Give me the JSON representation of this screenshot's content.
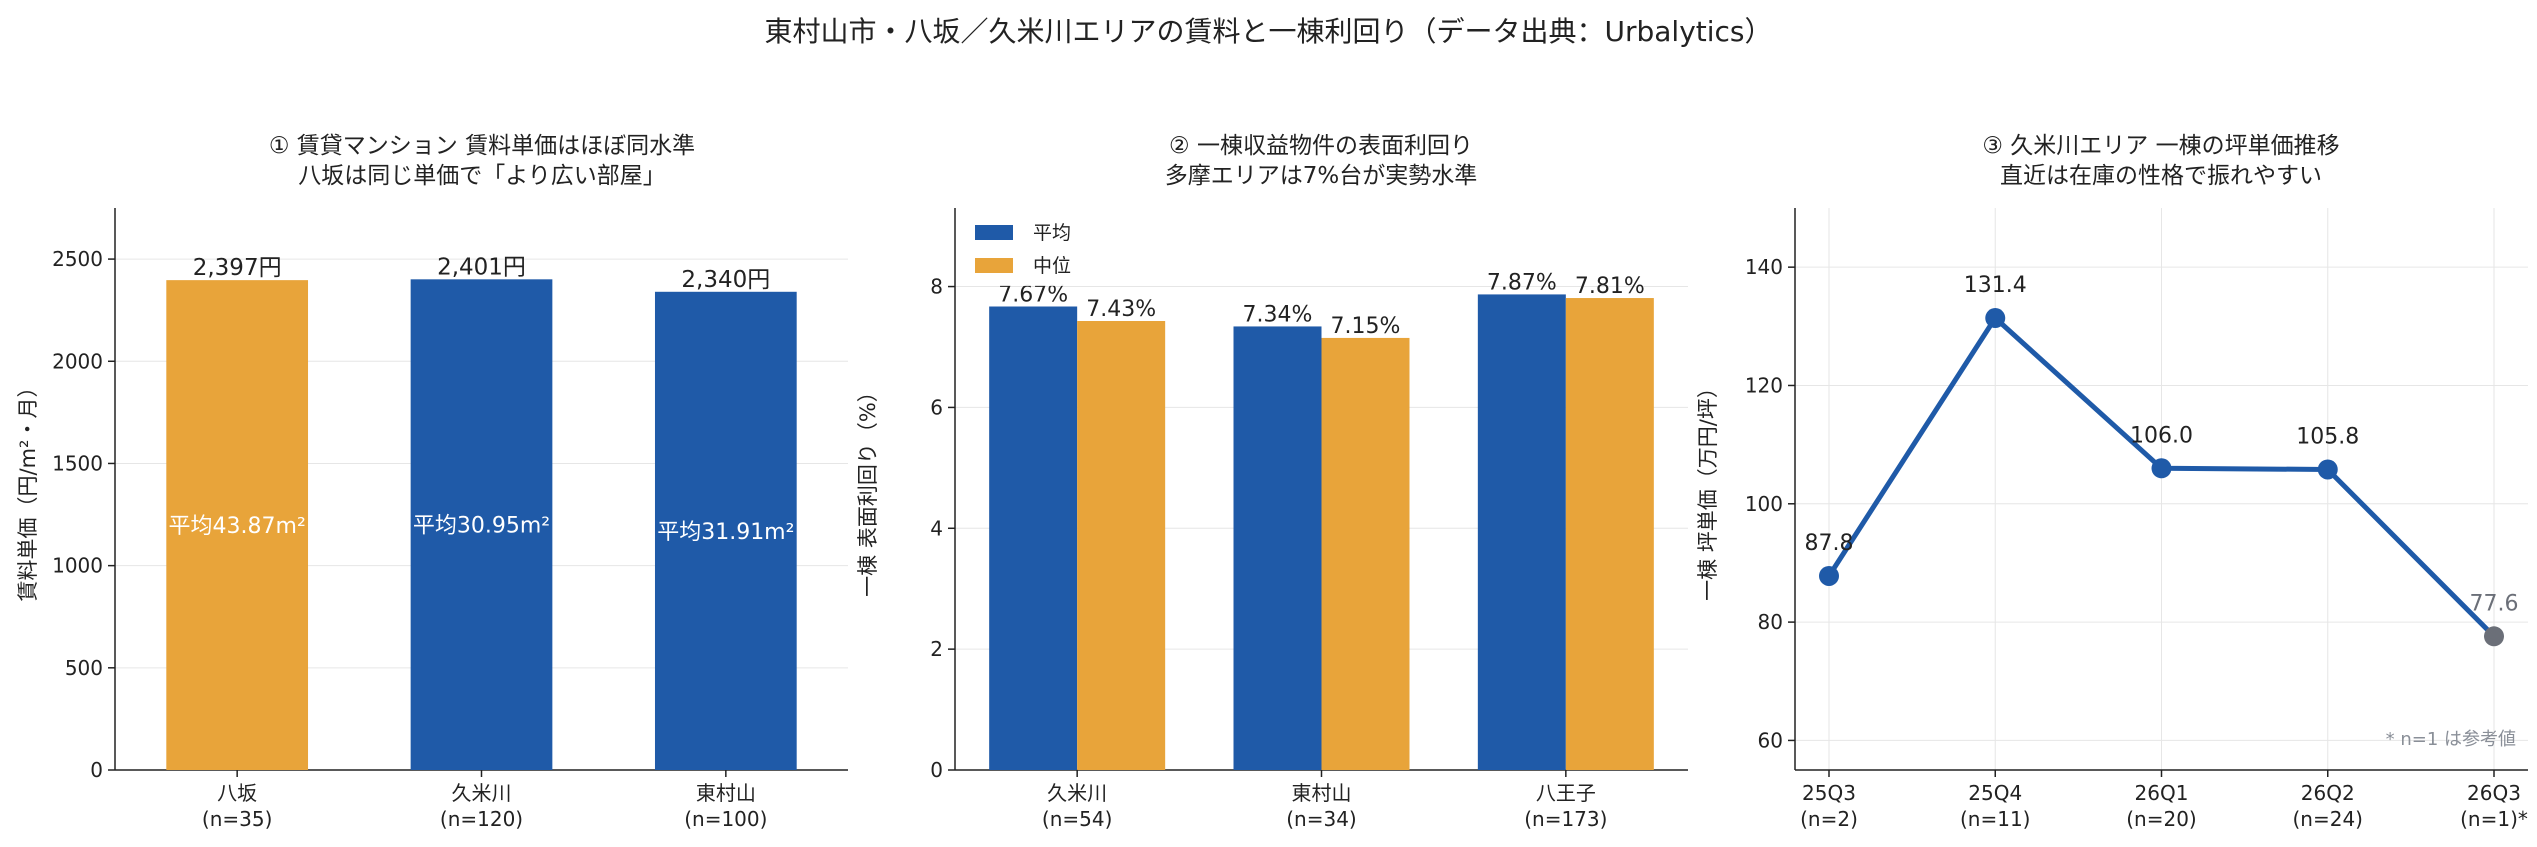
{
  "suptitle": "東村山市・八坂／久米川エリアの賃料と一棟利回り（データ出典：Urbalytics）",
  "colors": {
    "blue": "#1f5aa8",
    "orange": "#e8a43a",
    "gray": "#6b6f78",
    "grid": "#e6e6e6",
    "axis": "#222222"
  },
  "chart_data": [
    {
      "type": "bar",
      "title_lines": [
        "① 賃貸マンション 賃料単価はほぼ同水準",
        "八坂は同じ単価で「より広い部屋」"
      ],
      "ylabel": "賃料単価（円/m²・月）",
      "ylim": [
        0,
        2750
      ],
      "yticks": [
        0,
        500,
        1000,
        1500,
        2000,
        2500
      ],
      "categories": [
        "八坂",
        "久米川",
        "東村山"
      ],
      "n_labels": [
        "(n=35)",
        "(n=120)",
        "(n=100)"
      ],
      "values": [
        2397,
        2401,
        2340
      ],
      "value_labels": [
        "2,397円",
        "2,401円",
        "2,340円"
      ],
      "bar_colors": [
        "orange",
        "blue",
        "blue"
      ],
      "inner_labels": [
        "平均43.87m²",
        "平均30.95m²",
        "平均31.91m²"
      ],
      "grid": "y"
    },
    {
      "type": "bar",
      "title_lines": [
        "② 一棟収益物件の表面利回り",
        "多摩エリアは7%台が実勢水準"
      ],
      "ylabel": "一棟 表面利回り（%）",
      "ylim": [
        0,
        9.3
      ],
      "yticks": [
        0,
        2,
        4,
        6,
        8
      ],
      "categories": [
        "久米川",
        "東村山",
        "八王子"
      ],
      "n_labels": [
        "(n=54)",
        "(n=34)",
        "(n=173)"
      ],
      "series": [
        {
          "name": "平均",
          "color": "blue",
          "values": [
            7.67,
            7.34,
            7.87
          ],
          "labels": [
            "7.67%",
            "7.34%",
            "7.87%"
          ]
        },
        {
          "name": "中位",
          "color": "orange",
          "values": [
            7.43,
            7.15,
            7.81
          ],
          "labels": [
            "7.43%",
            "7.15%",
            "7.81%"
          ]
        }
      ],
      "legend": "top-left",
      "grid": "y"
    },
    {
      "type": "line",
      "title_lines": [
        "③ 久米川エリア 一棟の坪単価推移",
        "直近は在庫の性格で振れやすい"
      ],
      "ylabel": "一棟 坪単価（万円/坪）",
      "ylim": [
        55,
        150
      ],
      "yticks": [
        60,
        80,
        100,
        120,
        140
      ],
      "categories": [
        "25Q3",
        "25Q4",
        "26Q1",
        "26Q2",
        "26Q3"
      ],
      "n_labels": [
        "(n=2)",
        "(n=11)",
        "(n=20)",
        "(n=24)",
        "(n=1)*"
      ],
      "values": [
        87.8,
        131.4,
        106.0,
        105.8,
        77.6
      ],
      "value_labels": [
        "87.8",
        "131.4",
        "106.0",
        "105.8",
        "77.6"
      ],
      "point_colors": [
        "blue",
        "blue",
        "blue",
        "blue",
        "gray"
      ],
      "footnote": "* n=1 は参考値",
      "grid": "both"
    }
  ]
}
